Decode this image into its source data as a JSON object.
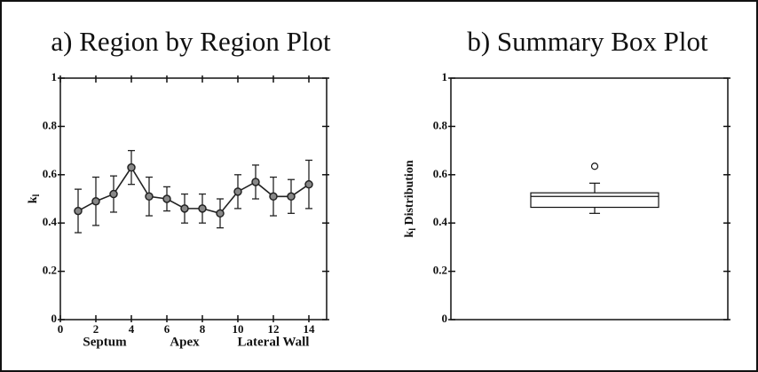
{
  "chart_data": [
    {
      "type": "line",
      "title": "a) Region by Region Plot",
      "ylabel_symbol": "k",
      "ylabel_subscript": "l",
      "x": [
        1,
        2,
        3,
        4,
        5,
        6,
        7,
        8,
        9,
        10,
        11,
        12,
        13,
        14
      ],
      "series": [
        {
          "color": "#222222",
          "values": [
            0.45,
            0.49,
            0.52,
            0.63,
            0.51,
            0.5,
            0.46,
            0.46,
            0.44,
            0.53,
            0.57,
            0.51,
            0.51,
            0.56
          ],
          "errors": [
            0.09,
            0.1,
            0.075,
            0.07,
            0.08,
            0.05,
            0.06,
            0.06,
            0.06,
            0.07,
            0.07,
            0.08,
            0.07,
            0.1
          ]
        }
      ],
      "xlim": [
        0,
        15
      ],
      "xticks": [
        0,
        2,
        4,
        6,
        8,
        10,
        12,
        14
      ],
      "ylim": [
        0,
        1
      ],
      "yticks": [
        0,
        0.2,
        0.4,
        0.6,
        0.8,
        1
      ],
      "annotations": [
        {
          "text": "Septum",
          "x": 2.5
        },
        {
          "text": "Apex",
          "x": 7
        },
        {
          "text": "Lateral Wall",
          "x": 12
        }
      ]
    },
    {
      "type": "box",
      "title": "b) Summary Box Plot",
      "ylabel_symbol": "k",
      "ylabel_subscript": "l",
      "ylabel_rest": " Distribution",
      "boxes": [
        {
          "whislo": 0.44,
          "q1": 0.465,
          "med": 0.51,
          "q3": 0.525,
          "whishi": 0.565,
          "fliers": [
            0.635
          ]
        }
      ],
      "ylim": [
        0,
        1
      ],
      "yticks": [
        0,
        0.2,
        0.4,
        0.6,
        0.8,
        1
      ]
    }
  ]
}
